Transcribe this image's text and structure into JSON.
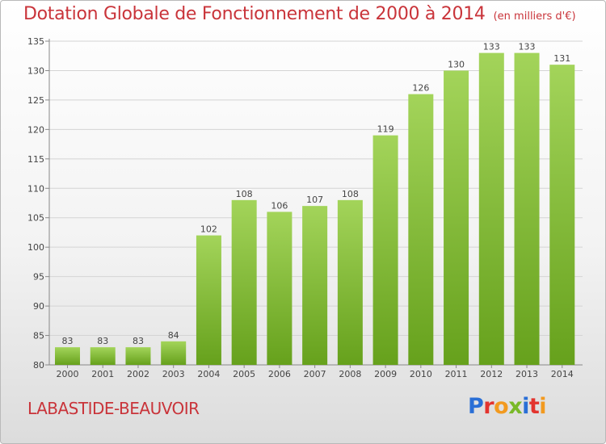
{
  "title": "Dotation Globale de Fonctionnement de 2000 à 2014",
  "subtitle": "(en milliers d'€)",
  "commune": "LABASTIDE-BEAUVOIR",
  "logo": {
    "letters": [
      "P",
      "r",
      "o",
      "x",
      "i",
      "t",
      "i"
    ]
  },
  "colors": {
    "title": "#c9343a",
    "bar_light": "#a3d45a",
    "bar_dark": "#66a11c",
    "grid": "#d4d4d4"
  },
  "chart_data": {
    "type": "bar",
    "title": "Dotation Globale de Fonctionnement de 2000 à 2014",
    "unit_label": "(en milliers d'€)",
    "categories": [
      "2000",
      "2001",
      "2002",
      "2003",
      "2004",
      "2005",
      "2006",
      "2007",
      "2008",
      "2009",
      "2010",
      "2011",
      "2012",
      "2013",
      "2014"
    ],
    "values": [
      83,
      83,
      83,
      84,
      102,
      108,
      106,
      107,
      108,
      119,
      126,
      130,
      133,
      133,
      131
    ],
    "ylim": [
      80,
      135
    ],
    "yticks": [
      80,
      85,
      90,
      95,
      100,
      105,
      110,
      115,
      120,
      125,
      130,
      135
    ],
    "xlabel": "",
    "ylabel": "",
    "grid": true
  }
}
